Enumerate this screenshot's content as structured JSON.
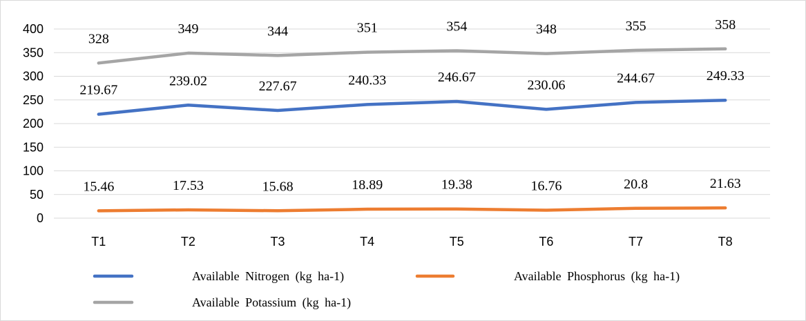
{
  "chart_data": {
    "type": "line",
    "title": "",
    "xlabel": "",
    "ylabel": "",
    "categories": [
      "T1",
      "T2",
      "T3",
      "T4",
      "T5",
      "T6",
      "T7",
      "T8"
    ],
    "ylim": [
      0,
      400
    ],
    "yticks": [
      0,
      50,
      100,
      150,
      200,
      250,
      300,
      350,
      400
    ],
    "ytick_labels": [
      "0",
      "50",
      "100",
      "150",
      "200",
      "250",
      "300",
      "350",
      "400"
    ],
    "grid": true,
    "legend_position": "bottom",
    "series": [
      {
        "name": "Available  Nitrogen  (kg ha-1)",
        "color": "#4472c4",
        "values": [
          219.67,
          239.02,
          227.67,
          240.33,
          246.67,
          230.06,
          244.67,
          249.33
        ],
        "labels": [
          "219.67",
          "239.02",
          "227.67",
          "240.33",
          "246.67",
          "230.06",
          "244.67",
          "249.33"
        ]
      },
      {
        "name": "Available  Phosphorus  (kg ha-1)",
        "color": "#ed7d31",
        "values": [
          15.46,
          17.53,
          15.68,
          18.89,
          19.38,
          16.76,
          20.8,
          21.63
        ],
        "labels": [
          "15.46",
          "17.53",
          "15.68",
          "18.89",
          "19.38",
          "16.76",
          "20.8",
          "21.63"
        ]
      },
      {
        "name": "Available  Potassium  (kg ha-1)",
        "color": "#a5a5a5",
        "values": [
          328,
          349,
          344,
          351,
          354,
          348,
          355,
          358
        ],
        "labels": [
          "328",
          "349",
          "344",
          "351",
          "354",
          "348",
          "355",
          "358"
        ]
      }
    ]
  }
}
